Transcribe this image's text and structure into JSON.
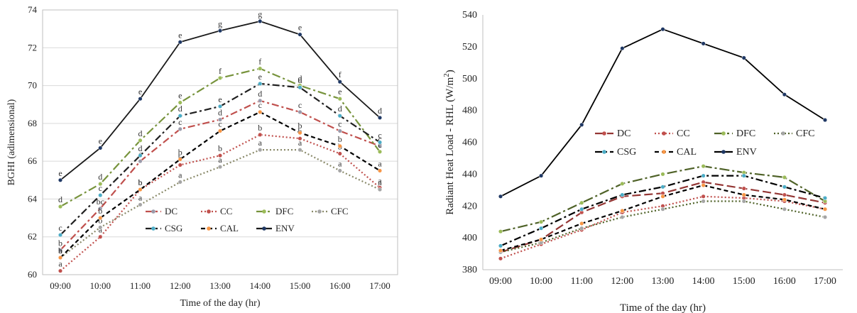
{
  "chart_data": [
    {
      "type": "line",
      "title": "",
      "xlabel": "Time of the day (hr)",
      "ylabel": "BGHI  (adimensional)",
      "ylim": [
        60,
        74
      ],
      "yticks": [
        60,
        62,
        64,
        66,
        68,
        70,
        72,
        74
      ],
      "grid": "horizontal",
      "legend_position": "lower-center",
      "categories": [
        "09:00",
        "10:00",
        "11:00",
        "12:00",
        "13:00",
        "14:00",
        "15:00",
        "16:00",
        "17:00"
      ],
      "series": [
        {
          "name": "DC",
          "color": "#c0504d",
          "dash": "10,4,3,4",
          "marker": "#9a9aaa",
          "values": [
            61.3,
            63.5,
            66.0,
            67.7,
            68.2,
            69.2,
            68.6,
            67.6,
            66.8
          ],
          "labels": [
            "b",
            "bc",
            "c",
            "c",
            "d",
            "d",
            "c",
            "c",
            "c"
          ]
        },
        {
          "name": "CC",
          "color": "#c0504d",
          "dash": "2,3",
          "marker": "#c0504d",
          "values": [
            60.2,
            62.0,
            64.5,
            65.8,
            66.3,
            67.4,
            67.2,
            66.4,
            64.6
          ],
          "labels": [
            "a",
            "a",
            "b",
            "b",
            "b",
            "b",
            "b",
            "b",
            "a"
          ]
        },
        {
          "name": "DFC",
          "color": "#77933c",
          "dash": "12,4,3,4",
          "marker": "#9bbb59",
          "values": [
            63.6,
            64.8,
            67.1,
            69.1,
            70.4,
            70.9,
            70.0,
            69.3,
            66.5
          ],
          "labels": [
            "d",
            "d",
            "d",
            "e",
            "f",
            "f",
            "d",
            "e",
            "c"
          ]
        },
        {
          "name": "CFC",
          "color": "#8a8a6a",
          "dash": "2,3",
          "marker": "#a5a5a5",
          "values": [
            60.9,
            62.5,
            63.7,
            64.9,
            65.7,
            66.6,
            66.6,
            65.5,
            64.5
          ],
          "labels": [
            "a",
            "b",
            "a",
            "a",
            "a",
            "a",
            "a",
            "a",
            "a"
          ]
        },
        {
          "name": "CSG",
          "color": "#1f1f1f",
          "dash": "10,4,3,4",
          "marker": "#4bacc6",
          "values": [
            62.1,
            64.2,
            66.3,
            68.4,
            68.9,
            70.1,
            69.9,
            68.4,
            67.0
          ],
          "labels": [
            "c",
            "c",
            "d",
            "d",
            "e",
            "e",
            "d",
            "d",
            "c"
          ]
        },
        {
          "name": "CAL",
          "color": "#000000",
          "dash": "6,4",
          "marker": "#f79646",
          "values": [
            60.9,
            63.0,
            64.5,
            66.1,
            67.6,
            68.6,
            67.5,
            66.8,
            65.5
          ],
          "labels": [
            "b",
            "b",
            "b",
            "b",
            "c",
            "c",
            "b",
            "b",
            "a"
          ]
        },
        {
          "name": "ENV",
          "color": "#1a1a1a",
          "dash": "",
          "marker": "#1f3864",
          "values": [
            65.0,
            66.7,
            69.3,
            72.3,
            72.9,
            73.4,
            72.7,
            70.2,
            68.3
          ],
          "labels": [
            "e",
            "e",
            "e",
            "e",
            "g",
            "g",
            "e",
            "f",
            "d"
          ]
        }
      ]
    },
    {
      "type": "line",
      "title": "",
      "xlabel": "Time of the day (hr)",
      "ylabel": "Radiant Heat Load - RHL  (W/m",
      "ylabel_sup": "2",
      "ylabel_end": ")",
      "ylim": [
        380,
        540
      ],
      "yticks": [
        380,
        400,
        420,
        440,
        460,
        480,
        500,
        520,
        540
      ],
      "grid": "none",
      "legend_position": "center",
      "categories": [
        "09:00",
        "10:00",
        "11:00",
        "12:00",
        "13:00",
        "14:00",
        "15:00",
        "16:00",
        "17:00"
      ],
      "series": [
        {
          "name": "DC",
          "color": "#943634",
          "dash": "12,5",
          "marker": "#c0504d",
          "values": [
            391,
            399,
            416,
            426,
            428,
            435,
            431,
            427,
            422
          ]
        },
        {
          "name": "CC",
          "color": "#c0504d",
          "dash": "2,3",
          "marker": "#c0504d",
          "values": [
            387,
            396,
            405,
            416,
            420,
            426,
            425,
            423,
            418
          ]
        },
        {
          "name": "DFC",
          "color": "#4f6228",
          "dash": "14,4,3,4",
          "marker": "#9bbb59",
          "values": [
            404,
            410,
            422,
            434,
            440,
            445,
            441,
            438,
            423
          ]
        },
        {
          "name": "CFC",
          "color": "#4f6228",
          "dash": "2,3",
          "marker": "#a5a5a5",
          "values": [
            391,
            397,
            406,
            413,
            418,
            423,
            423,
            418,
            413
          ]
        },
        {
          "name": "CSG",
          "color": "#000000",
          "dash": "10,4,3,4",
          "marker": "#4bacc6",
          "values": [
            395,
            406,
            418,
            427,
            432,
            439,
            439,
            432,
            425
          ]
        },
        {
          "name": "CAL",
          "color": "#000000",
          "dash": "6,4",
          "marker": "#f79646",
          "values": [
            392,
            399,
            409,
            417,
            426,
            433,
            427,
            424,
            418
          ]
        },
        {
          "name": "ENV",
          "color": "#000000",
          "dash": "",
          "marker": "#1f3864",
          "values": [
            426,
            439,
            471,
            519,
            531,
            522,
            513,
            490,
            474
          ]
        }
      ]
    }
  ]
}
